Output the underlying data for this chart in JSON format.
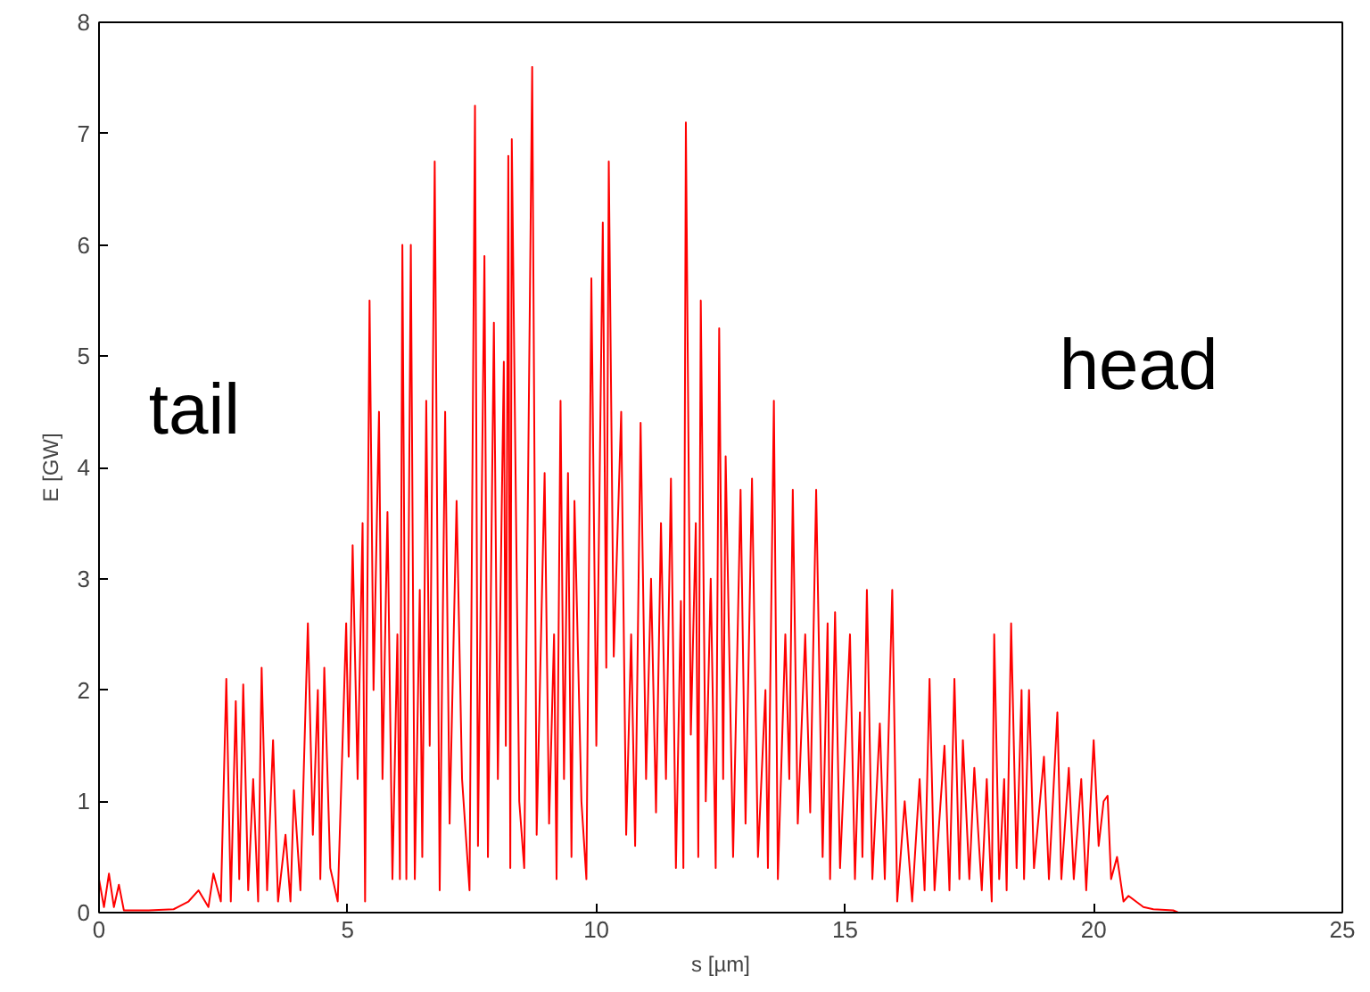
{
  "chart_data": {
    "type": "line",
    "xlabel": "s [µm]",
    "ylabel": "E [GW]",
    "xlim": [
      0,
      25
    ],
    "ylim": [
      0,
      8
    ],
    "xticks": [
      0,
      5,
      10,
      15,
      20,
      25
    ],
    "yticks": [
      0,
      1,
      2,
      3,
      4,
      5,
      6,
      7,
      8
    ],
    "grid": false,
    "annotations": [
      "tail",
      "head"
    ],
    "series": [
      {
        "color": "#ff0000",
        "x": [
          0,
          0.1,
          0.2,
          0.3,
          0.4,
          0.5,
          1.0,
          1.5,
          1.8,
          2.0,
          2.2,
          2.3,
          2.45,
          2.56,
          2.65,
          2.75,
          2.82,
          2.9,
          3.0,
          3.1,
          3.2,
          3.27,
          3.38,
          3.5,
          3.6,
          3.75,
          3.85,
          3.92,
          4.05,
          4.2,
          4.3,
          4.4,
          4.45,
          4.53,
          4.65,
          4.8,
          4.97,
          5.02,
          5.1,
          5.2,
          5.3,
          5.35,
          5.44,
          5.52,
          5.63,
          5.7,
          5.8,
          5.9,
          6.0,
          6.05,
          6.1,
          6.18,
          6.27,
          6.35,
          6.45,
          6.5,
          6.58,
          6.65,
          6.75,
          6.85,
          6.96,
          7.05,
          7.19,
          7.3,
          7.45,
          7.56,
          7.62,
          7.75,
          7.82,
          7.94,
          8.02,
          8.14,
          8.18,
          8.23,
          8.27,
          8.3,
          8.45,
          8.55,
          8.71,
          8.8,
          8.96,
          9.05,
          9.15,
          9.2,
          9.28,
          9.35,
          9.43,
          9.5,
          9.56,
          9.7,
          9.8,
          9.9,
          10.0,
          10.13,
          10.2,
          10.25,
          10.35,
          10.5,
          10.6,
          10.7,
          10.78,
          10.89,
          11.0,
          11.1,
          11.2,
          11.3,
          11.4,
          11.5,
          11.6,
          11.7,
          11.75,
          11.8,
          11.9,
          12.0,
          12.05,
          12.1,
          12.2,
          12.3,
          12.4,
          12.47,
          12.55,
          12.6,
          12.75,
          12.9,
          13.0,
          13.13,
          13.25,
          13.4,
          13.45,
          13.57,
          13.65,
          13.8,
          13.88,
          13.95,
          14.05,
          14.2,
          14.3,
          14.42,
          14.55,
          14.65,
          14.7,
          14.8,
          14.9,
          15.1,
          15.2,
          15.3,
          15.35,
          15.44,
          15.55,
          15.7,
          15.8,
          15.95,
          16.05,
          16.2,
          16.35,
          16.5,
          16.6,
          16.7,
          16.8,
          17.0,
          17.1,
          17.2,
          17.3,
          17.37,
          17.5,
          17.6,
          17.75,
          17.85,
          17.95,
          18.0,
          18.1,
          18.2,
          18.25,
          18.34,
          18.45,
          18.55,
          18.6,
          18.7,
          18.8,
          19.0,
          19.1,
          19.27,
          19.35,
          19.5,
          19.6,
          19.75,
          19.85,
          20.0,
          20.1,
          20.2,
          20.28,
          20.35,
          20.47,
          20.6,
          20.7,
          20.85,
          21.0,
          21.2,
          21.6,
          21.7
        ],
        "values": [
          0.3,
          0.05,
          0.35,
          0.05,
          0.25,
          0.02,
          0.02,
          0.03,
          0.1,
          0.2,
          0.05,
          0.35,
          0.1,
          2.1,
          0.1,
          1.9,
          0.3,
          2.05,
          0.2,
          1.2,
          0.1,
          2.2,
          0.2,
          1.55,
          0.1,
          0.7,
          0.1,
          1.1,
          0.2,
          2.6,
          0.7,
          2.0,
          0.3,
          2.2,
          0.4,
          0.1,
          2.6,
          1.4,
          3.3,
          1.2,
          3.5,
          0.1,
          5.5,
          2.0,
          4.5,
          1.2,
          3.6,
          0.3,
          2.5,
          0.3,
          6.0,
          0.3,
          6.0,
          0.3,
          2.9,
          0.5,
          4.6,
          1.5,
          6.75,
          0.2,
          4.5,
          0.8,
          3.7,
          1.2,
          0.2,
          7.25,
          0.6,
          5.9,
          0.5,
          5.3,
          1.2,
          4.95,
          1.5,
          6.8,
          0.4,
          6.95,
          1.0,
          0.4,
          7.6,
          0.7,
          3.95,
          0.8,
          2.5,
          0.3,
          4.6,
          1.2,
          3.95,
          0.5,
          3.7,
          1.0,
          0.3,
          5.7,
          1.5,
          6.2,
          2.2,
          6.75,
          2.3,
          4.5,
          0.7,
          2.5,
          0.6,
          4.4,
          1.2,
          3.0,
          0.9,
          3.5,
          1.2,
          3.9,
          0.4,
          2.8,
          0.4,
          7.1,
          1.6,
          3.5,
          0.5,
          5.5,
          1.0,
          3.0,
          0.4,
          5.25,
          1.2,
          4.1,
          0.5,
          3.8,
          0.8,
          3.9,
          0.5,
          2.0,
          0.4,
          4.6,
          0.3,
          2.5,
          1.2,
          3.8,
          0.8,
          2.5,
          0.9,
          3.8,
          0.5,
          2.6,
          0.3,
          2.7,
          0.4,
          2.5,
          0.3,
          1.8,
          0.5,
          2.9,
          0.3,
          1.7,
          0.3,
          2.9,
          0.1,
          1.0,
          0.1,
          1.2,
          0.2,
          2.1,
          0.2,
          1.5,
          0.2,
          2.1,
          0.3,
          1.55,
          0.3,
          1.3,
          0.2,
          1.2,
          0.1,
          2.5,
          0.3,
          1.2,
          0.2,
          2.6,
          0.4,
          2.0,
          0.3,
          2.0,
          0.4,
          1.4,
          0.3,
          1.8,
          0.3,
          1.3,
          0.3,
          1.2,
          0.2,
          1.55,
          0.6,
          1.0,
          1.05,
          0.3,
          0.5,
          0.1,
          0.15,
          0.1,
          0.05,
          0.03,
          0.02,
          0.0
        ]
      }
    ]
  }
}
